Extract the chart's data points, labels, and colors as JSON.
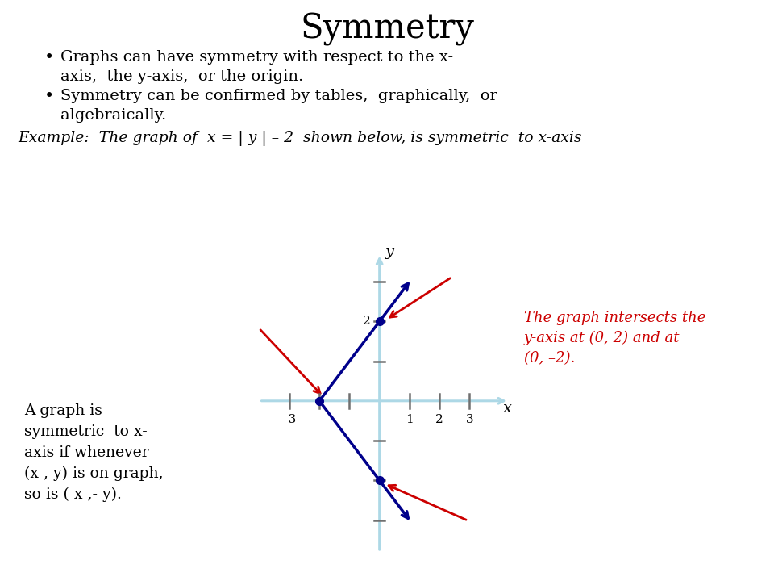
{
  "title": "Symmetry",
  "title_fontsize": 30,
  "bullet1_line1": "Graphs can have symmetry with respect to the x-",
  "bullet1_line2": "axis,  the y-axis,  or the origin.",
  "bullet2_line1": "Symmetry can be confirmed by tables,  graphically,  or",
  "bullet2_line2": "algebraically.",
  "example_text": "Example:  The graph of  x = | y | – 2  shown below, is symmetric  to x-axis",
  "left_note_line1": "A graph is",
  "left_note_line2": "symmetric  to x-",
  "left_note_line3": "axis if whenever",
  "left_note_line4": "(x , y) is on graph,",
  "left_note_line5": "so is ( x ,- y).",
  "right_note_line1": "The graph intersects the",
  "right_note_line2": "y-axis at (0, 2) and at",
  "right_note_line3": "(0, –2).",
  "graph_color": "#00008B",
  "arrow_color": "#CC0000",
  "axis_color": "#ADD8E6",
  "tick_color": "#707070",
  "text_color": "#000000",
  "red_text_color": "#CC0000",
  "bg_color": "#FFFFFF",
  "dot_color": "#00008B"
}
